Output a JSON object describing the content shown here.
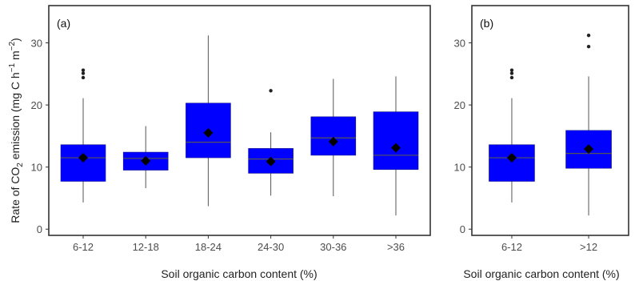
{
  "y_label_parts": {
    "pre": "Rate of CO",
    "sub": "2",
    "mid": " emission (mg C h",
    "sup1": "−1",
    "gap": " m",
    "sup2": "−2",
    "post": ")"
  },
  "colors": {
    "box_fill": "#0000ff",
    "median": "#555555",
    "whisker": "#555555",
    "mean": "#000000",
    "outlier": "#222222",
    "panel_border": "#333333"
  },
  "chart_data": [
    {
      "type": "box",
      "panel_label": "(a)",
      "xlabel": "Soil organic carbon content (%)",
      "ylim": [
        -1,
        36
      ],
      "yticks": [
        0,
        10,
        20,
        30
      ],
      "categories": [
        "6-12",
        "12-18",
        "18-24",
        "24-30",
        "30-36",
        ">36"
      ],
      "boxes": [
        {
          "category": "6-12",
          "whisker_low": 4.3,
          "q1": 7.7,
          "median": 11.5,
          "q3": 13.6,
          "whisker_high": 21.1,
          "mean": 11.5,
          "outliers": [
            24.4,
            25.1,
            25.6
          ]
        },
        {
          "category": "12-18",
          "whisker_low": 6.6,
          "q1": 9.5,
          "median": 11.4,
          "q3": 12.4,
          "whisker_high": 16.6,
          "mean": 11.0,
          "outliers": []
        },
        {
          "category": "18-24",
          "whisker_low": 3.7,
          "q1": 11.5,
          "median": 14.0,
          "q3": 20.3,
          "whisker_high": 31.2,
          "mean": 15.5,
          "outliers": []
        },
        {
          "category": "24-30",
          "whisker_low": 5.4,
          "q1": 9.0,
          "median": 11.3,
          "q3": 13.0,
          "whisker_high": 15.6,
          "mean": 10.9,
          "outliers": [
            22.3
          ]
        },
        {
          "category": "30-36",
          "whisker_low": 5.3,
          "q1": 11.9,
          "median": 14.7,
          "q3": 18.1,
          "whisker_high": 24.2,
          "mean": 14.1,
          "outliers": []
        },
        {
          "category": ">36",
          "whisker_low": 2.2,
          "q1": 9.6,
          "median": 11.9,
          "q3": 18.9,
          "whisker_high": 24.6,
          "mean": 13.1,
          "outliers": []
        }
      ]
    },
    {
      "type": "box",
      "panel_label": "(b)",
      "xlabel": "Soil organic carbon content (%)",
      "ylim": [
        -1,
        36
      ],
      "yticks": [
        0,
        10,
        20,
        30
      ],
      "categories": [
        "6-12",
        ">12"
      ],
      "boxes": [
        {
          "category": "6-12",
          "whisker_low": 4.3,
          "q1": 7.7,
          "median": 11.5,
          "q3": 13.6,
          "whisker_high": 21.1,
          "mean": 11.5,
          "outliers": [
            24.4,
            25.1,
            25.6
          ]
        },
        {
          "category": ">12",
          "whisker_low": 2.2,
          "q1": 9.8,
          "median": 12.2,
          "q3": 15.9,
          "whisker_high": 24.6,
          "mean": 12.9,
          "outliers": [
            29.4,
            31.2
          ]
        }
      ]
    }
  ]
}
